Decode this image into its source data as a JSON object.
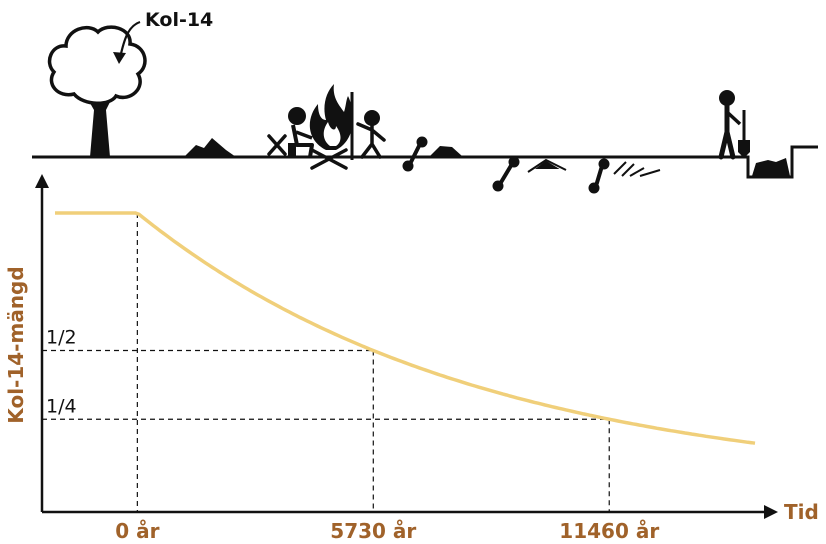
{
  "illustration": {
    "label": "Kol-14",
    "icons": [
      "tree-icon",
      "campfire-icon",
      "person-icon",
      "bone-icon",
      "digger-icon",
      "shovel-icon"
    ]
  },
  "chart_data": {
    "type": "line",
    "xlabel": "Tid",
    "ylabel": "Kol-14-mängd",
    "x_ticks": [
      "0 år",
      "5730 år",
      "11460 år"
    ],
    "y_ticks": [
      "1/2",
      "1/4"
    ],
    "series": [
      {
        "x": [
          -2000,
          -1000,
          0,
          1000,
          2000,
          3000,
          4000,
          5000,
          5730,
          7000,
          8000,
          9000,
          10000,
          11000,
          11460,
          12500,
          13500,
          14500,
          15000
        ],
        "values": [
          1,
          1,
          1,
          0.886,
          0.785,
          0.696,
          0.616,
          0.546,
          0.5,
          0.429,
          0.38,
          0.337,
          0.298,
          0.264,
          0.25,
          0.22,
          0.195,
          0.173,
          0.163
        ]
      }
    ],
    "xlim": [
      -2000,
      15000
    ],
    "ylim": [
      0,
      1
    ],
    "colors": {
      "curve": "#f0cf7a",
      "axis_label": "#a0622a",
      "ink": "#111111"
    },
    "grid": false
  }
}
